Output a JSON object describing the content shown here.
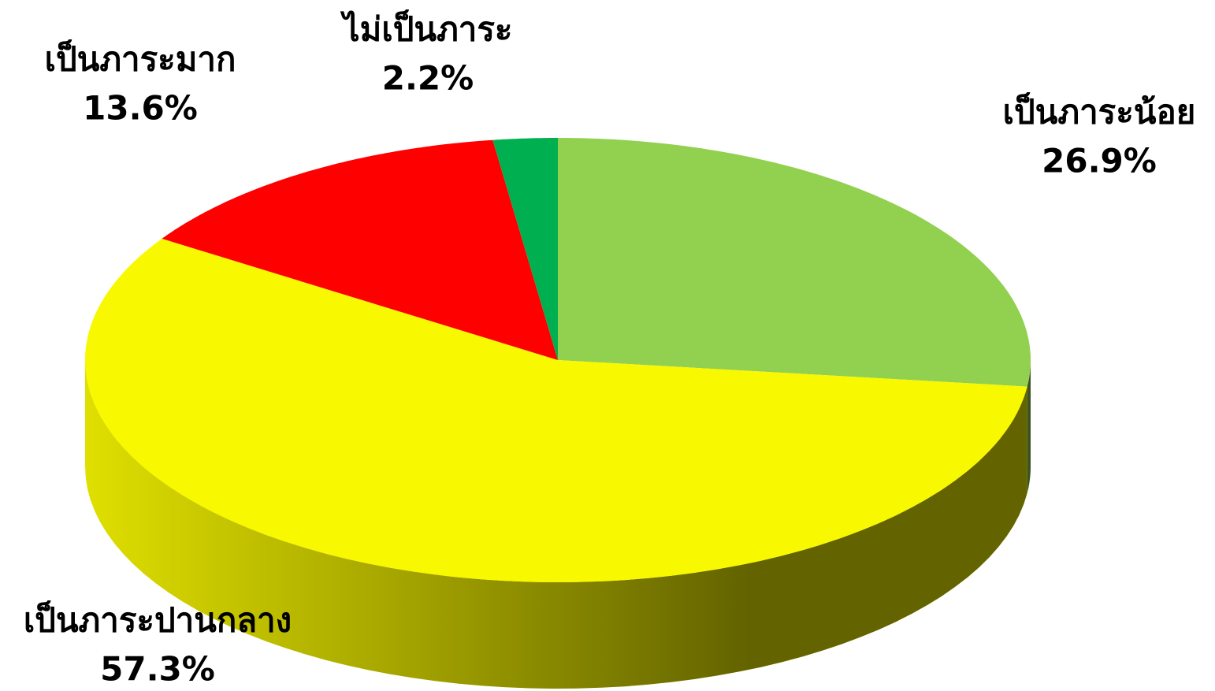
{
  "chart_data": {
    "type": "pie",
    "categories": [
      "เป็นภาระน้อย",
      "เป็นภาระปานกลาง",
      "เป็นภาระมาก",
      "ไม่เป็นภาระ"
    ],
    "values": [
      26.9,
      57.3,
      13.6,
      2.2
    ],
    "value_labels": [
      "26.9%",
      "57.3%",
      "13.6%",
      "2.2%"
    ],
    "colors": [
      "#92d050",
      "#f8f800",
      "#ff0000",
      "#00b050"
    ]
  }
}
